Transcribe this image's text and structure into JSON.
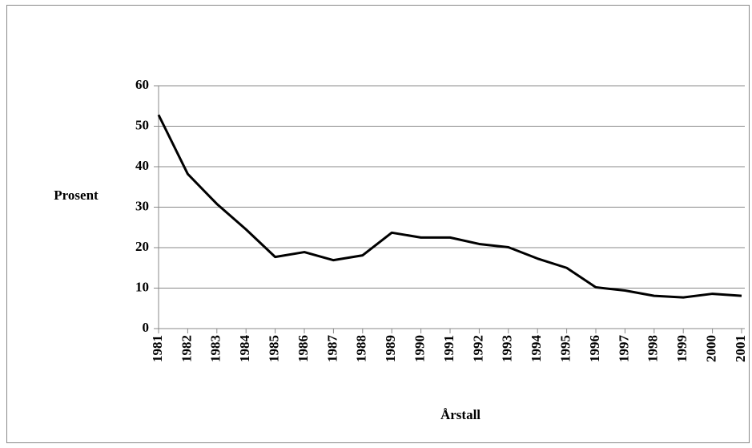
{
  "chart_data": {
    "type": "line",
    "y_label": "Prosent",
    "x_label": "Årstall",
    "categories": [
      "1981",
      "1982",
      "1983",
      "1984",
      "1985",
      "1986",
      "1987",
      "1988",
      "1989",
      "1990",
      "1991",
      "1992",
      "1993",
      "1994",
      "1995",
      "1996",
      "1997",
      "1998",
      "1999",
      "2000",
      "2001"
    ],
    "values": [
      52.8,
      38.2,
      30.8,
      24.5,
      17.7,
      18.9,
      16.9,
      18.1,
      23.7,
      22.5,
      22.5,
      20.9,
      20.1,
      17.3,
      15.0,
      10.2,
      9.4,
      8.1,
      7.7,
      8.6,
      8.1
    ],
    "color": "#000000",
    "ylim": [
      0,
      60
    ],
    "yticks": [
      0,
      10,
      20,
      30,
      40,
      50,
      60
    ],
    "grid": true
  }
}
